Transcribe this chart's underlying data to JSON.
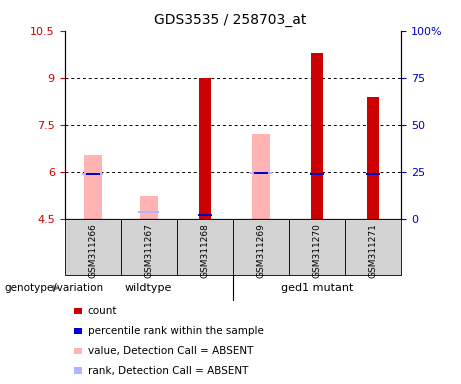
{
  "title": "GDS3535 / 258703_at",
  "samples": [
    "GSM311266",
    "GSM311267",
    "GSM311268",
    "GSM311269",
    "GSM311270",
    "GSM311271"
  ],
  "ylim_left": [
    4.5,
    10.5
  ],
  "ylim_right": [
    0,
    100
  ],
  "yticks_left": [
    4.5,
    6.0,
    7.5,
    9.0,
    10.5
  ],
  "yticks_right": [
    0,
    25,
    50,
    75,
    100
  ],
  "ytick_labels_left": [
    "4.5",
    "6",
    "7.5",
    "9",
    "10.5"
  ],
  "ytick_labels_right": [
    "0",
    "25",
    "50",
    "75",
    "100%"
  ],
  "red_bars": [
    null,
    null,
    8.98,
    null,
    9.78,
    8.4
  ],
  "pink_bars": [
    6.55,
    5.22,
    null,
    7.2,
    null,
    null
  ],
  "blue_rank": [
    5.92,
    null,
    4.62,
    5.97,
    5.92,
    5.92
  ],
  "lavender_rank": [
    5.92,
    4.72,
    null,
    5.97,
    null,
    null
  ],
  "bar_bottom": 4.5,
  "red_color": "#cc0000",
  "pink_color": "#ffb3b3",
  "blue_color": "#0000cc",
  "lavender_color": "#b3b3ff",
  "wildtype_label": "wildtype",
  "mutant_label": "ged1 mutant",
  "genotype_label": "genotype/variation",
  "legend_items": [
    {
      "label": "count",
      "color": "#cc0000"
    },
    {
      "label": "percentile rank within the sample",
      "color": "#0000cc"
    },
    {
      "label": "value, Detection Call = ABSENT",
      "color": "#ffb3b3"
    },
    {
      "label": "rank, Detection Call = ABSENT",
      "color": "#b3b3ff"
    }
  ],
  "bar_width": 0.38,
  "background_label": "#d3d3d3",
  "background_group": "#90ee90"
}
